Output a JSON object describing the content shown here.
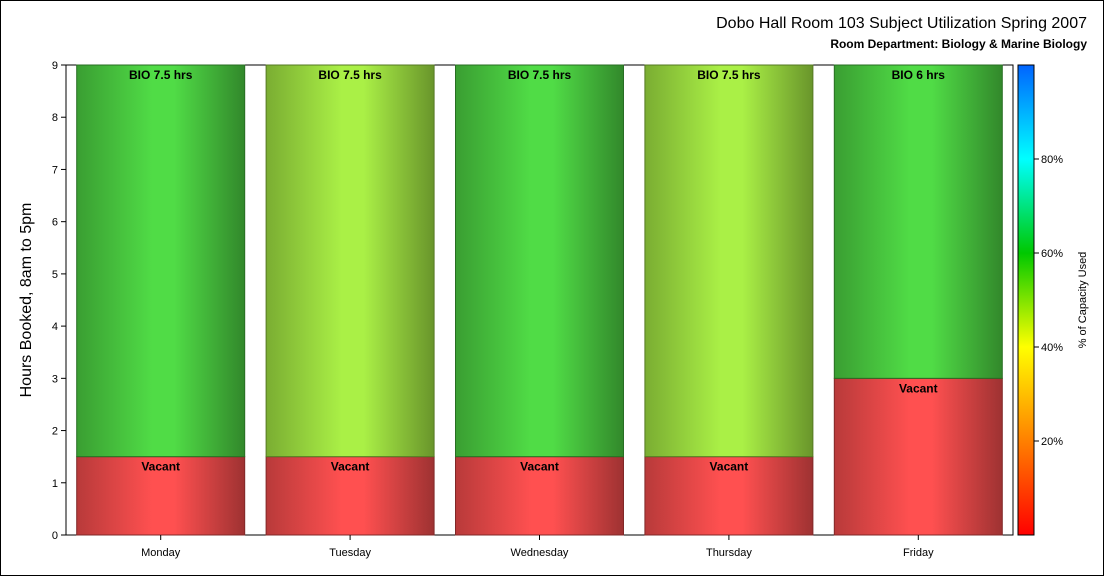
{
  "chart_data": {
    "type": "bar",
    "stacked": true,
    "title": "Dobo Hall Room 103 Subject Utilization Spring 2007",
    "subtitle": "Room Department:  Biology & Marine Biology",
    "xlabel": "",
    "ylabel": "Hours Booked, 8am to 5pm",
    "ylim": [
      0,
      9
    ],
    "yticks": [
      "0",
      "1",
      "2",
      "3",
      "4",
      "5",
      "6",
      "7",
      "8",
      "9"
    ],
    "categories": [
      "Monday",
      "Tuesday",
      "Wednesday",
      "Thursday",
      "Friday"
    ],
    "series": [
      {
        "name": "Vacant",
        "values": [
          1.5,
          1.5,
          1.5,
          1.5,
          3
        ],
        "labels": [
          "Vacant",
          "Vacant",
          "Vacant",
          "Vacant",
          "Vacant"
        ],
        "color": "#ff5050"
      },
      {
        "name": "BIO",
        "values": [
          7.5,
          7.5,
          7.5,
          7.5,
          6
        ],
        "labels": [
          "BIO 7.5 hrs",
          "BIO 7.5 hrs",
          "BIO 7.5 hrs",
          "BIO 7.5 hrs",
          "BIO 6 hrs"
        ],
        "colors": [
          "#50dc46",
          "#aaf046",
          "#50dc46",
          "#aaf046",
          "#50dc46"
        ]
      }
    ],
    "colorbar": {
      "label": "% of Capacity Used",
      "range": [
        0,
        100
      ],
      "ticks": [
        20,
        40,
        60,
        80
      ],
      "tick_labels": [
        "20%",
        "40%",
        "60%",
        "80%"
      ],
      "colors": [
        "#ff0000",
        "#ff8000",
        "#ffff00",
        "#00c800",
        "#00ffff",
        "#0064ff"
      ]
    },
    "grid": false,
    "legend": "none"
  }
}
